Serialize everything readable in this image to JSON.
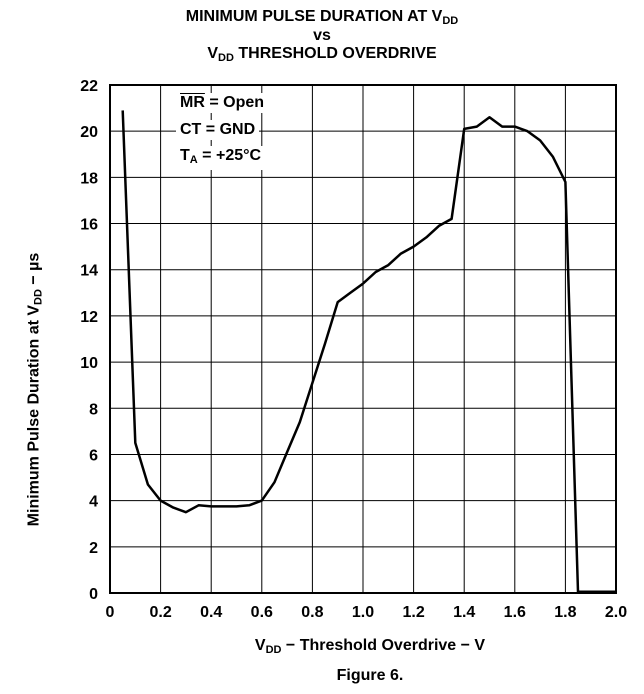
{
  "chart_data": {
    "type": "line",
    "title_line1_main": "MINIMUM PULSE DURATION AT V",
    "title_line1_sub": "DD",
    "title_line2": "vs",
    "title_line3_pre": "V",
    "title_line3_sub": "DD",
    "title_line3_post": " THRESHOLD OVERDRIVE",
    "xlabel_pre": "V",
    "xlabel_sub": "DD",
    "xlabel_post": " − Threshold Overdrive − V",
    "ylabel_pre": "Minimum Pulse Duration at V",
    "ylabel_sub": "DD",
    "ylabel_post": " − µs",
    "figure_caption": "Figure 6.",
    "annotations": {
      "mr_overlined": "MR",
      "mr_rest": " = Open",
      "ct": "CT = GND",
      "ta_pre": "T",
      "ta_sub": "A",
      "ta_post": " = +25°C"
    },
    "xlim": [
      0,
      2.0
    ],
    "ylim": [
      0,
      22
    ],
    "xticks": [
      "0",
      "0.2",
      "0.4",
      "0.6",
      "0.8",
      "1.0",
      "1.2",
      "1.4",
      "1.6",
      "1.8",
      "2.0"
    ],
    "yticks": [
      "0",
      "2",
      "4",
      "6",
      "8",
      "10",
      "12",
      "14",
      "16",
      "18",
      "20",
      "22"
    ],
    "grid": true,
    "line_color": "#000000",
    "series": [
      {
        "x": [
          0.05,
          0.1,
          0.15,
          0.2,
          0.25,
          0.3,
          0.35,
          0.4,
          0.45,
          0.5,
          0.55,
          0.6,
          0.65,
          0.7,
          0.75,
          0.8,
          0.85,
          0.9,
          0.95,
          1.0,
          1.05,
          1.1,
          1.15,
          1.2,
          1.25,
          1.3,
          1.35,
          1.4,
          1.45,
          1.5,
          1.55,
          1.6,
          1.65,
          1.7,
          1.75,
          1.8,
          1.85,
          1.9,
          1.95,
          2.0
        ],
        "y": [
          20.9,
          6.5,
          4.7,
          4.0,
          3.7,
          3.5,
          3.8,
          3.75,
          3.75,
          3.75,
          3.8,
          4.0,
          4.8,
          6.1,
          7.4,
          9.1,
          10.8,
          12.6,
          13.0,
          13.4,
          13.9,
          14.2,
          14.7,
          15.0,
          15.4,
          15.9,
          16.2,
          20.1,
          20.2,
          20.6,
          20.2,
          20.2,
          20.0,
          19.6,
          18.9,
          17.8,
          0.05,
          0.05,
          0.05,
          0.05
        ]
      }
    ]
  }
}
